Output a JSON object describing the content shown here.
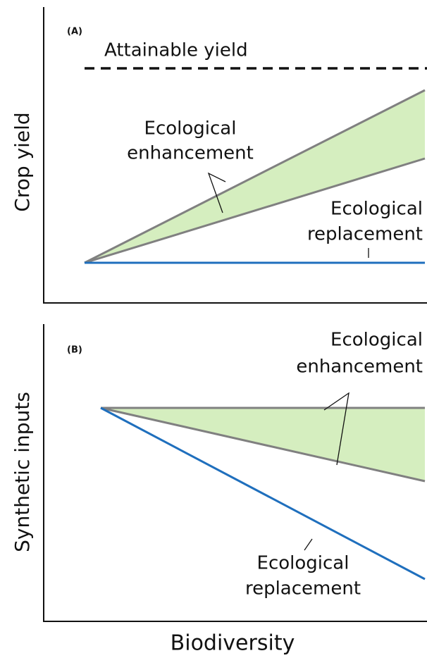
{
  "panel_a": {
    "label": "(A)",
    "y_axis": "Crop yield",
    "attainable": "Attainable yield",
    "enhancement": [
      "Ecological",
      "enhancement"
    ],
    "replacement": [
      "Ecological",
      "replacement"
    ]
  },
  "panel_b": {
    "label": "(B)",
    "y_axis": "Synthetic inputs",
    "enhancement": [
      "Ecological",
      "enhancement"
    ],
    "replacement": [
      "Ecological",
      "replacement"
    ]
  },
  "x_axis": "Biodiversity"
}
